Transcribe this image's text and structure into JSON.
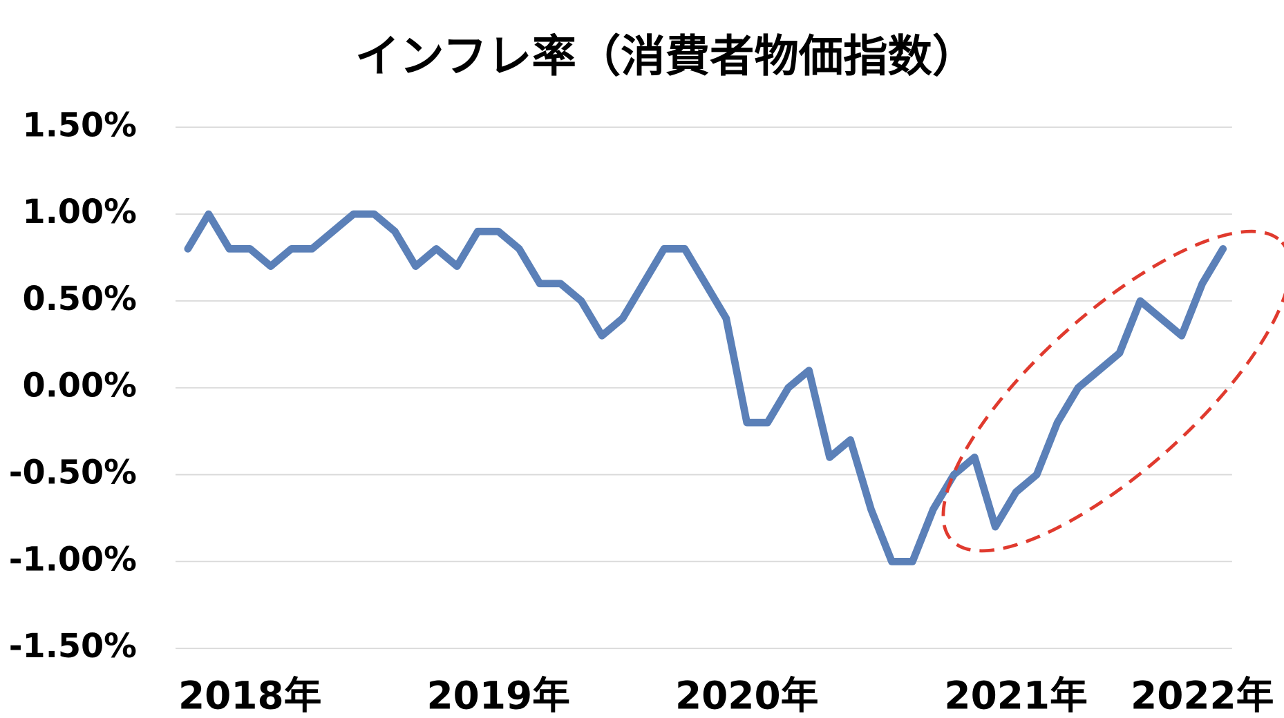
{
  "chart_data": {
    "type": "line",
    "title": "インフレ率（消費者物価指数）",
    "categories": [
      null,
      null,
      null,
      "2018年",
      null,
      null,
      null,
      null,
      null,
      null,
      null,
      null,
      null,
      null,
      null,
      "2019年",
      null,
      null,
      null,
      null,
      null,
      null,
      null,
      null,
      null,
      null,
      null,
      "2020年",
      null,
      null,
      null,
      null,
      null,
      null,
      null,
      null,
      null,
      null,
      null,
      null,
      "2021年",
      null,
      null,
      null,
      null,
      null,
      null,
      null,
      null,
      "2022年",
      null
    ],
    "series": [
      {
        "name": "インフレ率",
        "color": "#5b80b8",
        "values": [
          0.8,
          1.0,
          0.8,
          0.8,
          0.7,
          0.8,
          0.8,
          0.9,
          1.0,
          1.0,
          0.9,
          0.7,
          0.8,
          0.7,
          0.9,
          0.9,
          0.8,
          0.6,
          0.6,
          0.5,
          0.3,
          0.4,
          0.6,
          0.8,
          0.8,
          0.6,
          0.4,
          -0.2,
          -0.2,
          0.0,
          0.1,
          -0.4,
          -0.3,
          -0.7,
          -1.0,
          -1.0,
          -0.7,
          -0.5,
          -0.4,
          -0.8,
          -0.6,
          -0.5,
          -0.2,
          0.0,
          0.1,
          0.2,
          0.5,
          0.4,
          0.3,
          0.6,
          0.8
        ]
      }
    ],
    "ylim": [
      -1.5,
      1.5
    ],
    "yticks": [
      {
        "value": -1.5,
        "label": "-1.50%"
      },
      {
        "value": -1.0,
        "label": "-1.00%"
      },
      {
        "value": -0.5,
        "label": "-0.50%"
      },
      {
        "value": 0,
        "label": "0.00%"
      },
      {
        "value": 0.5,
        "label": "0.50%"
      },
      {
        "value": 1.0,
        "label": "1.00%"
      },
      {
        "value": 1.5,
        "label": "1.50%"
      }
    ],
    "grid": true
  }
}
